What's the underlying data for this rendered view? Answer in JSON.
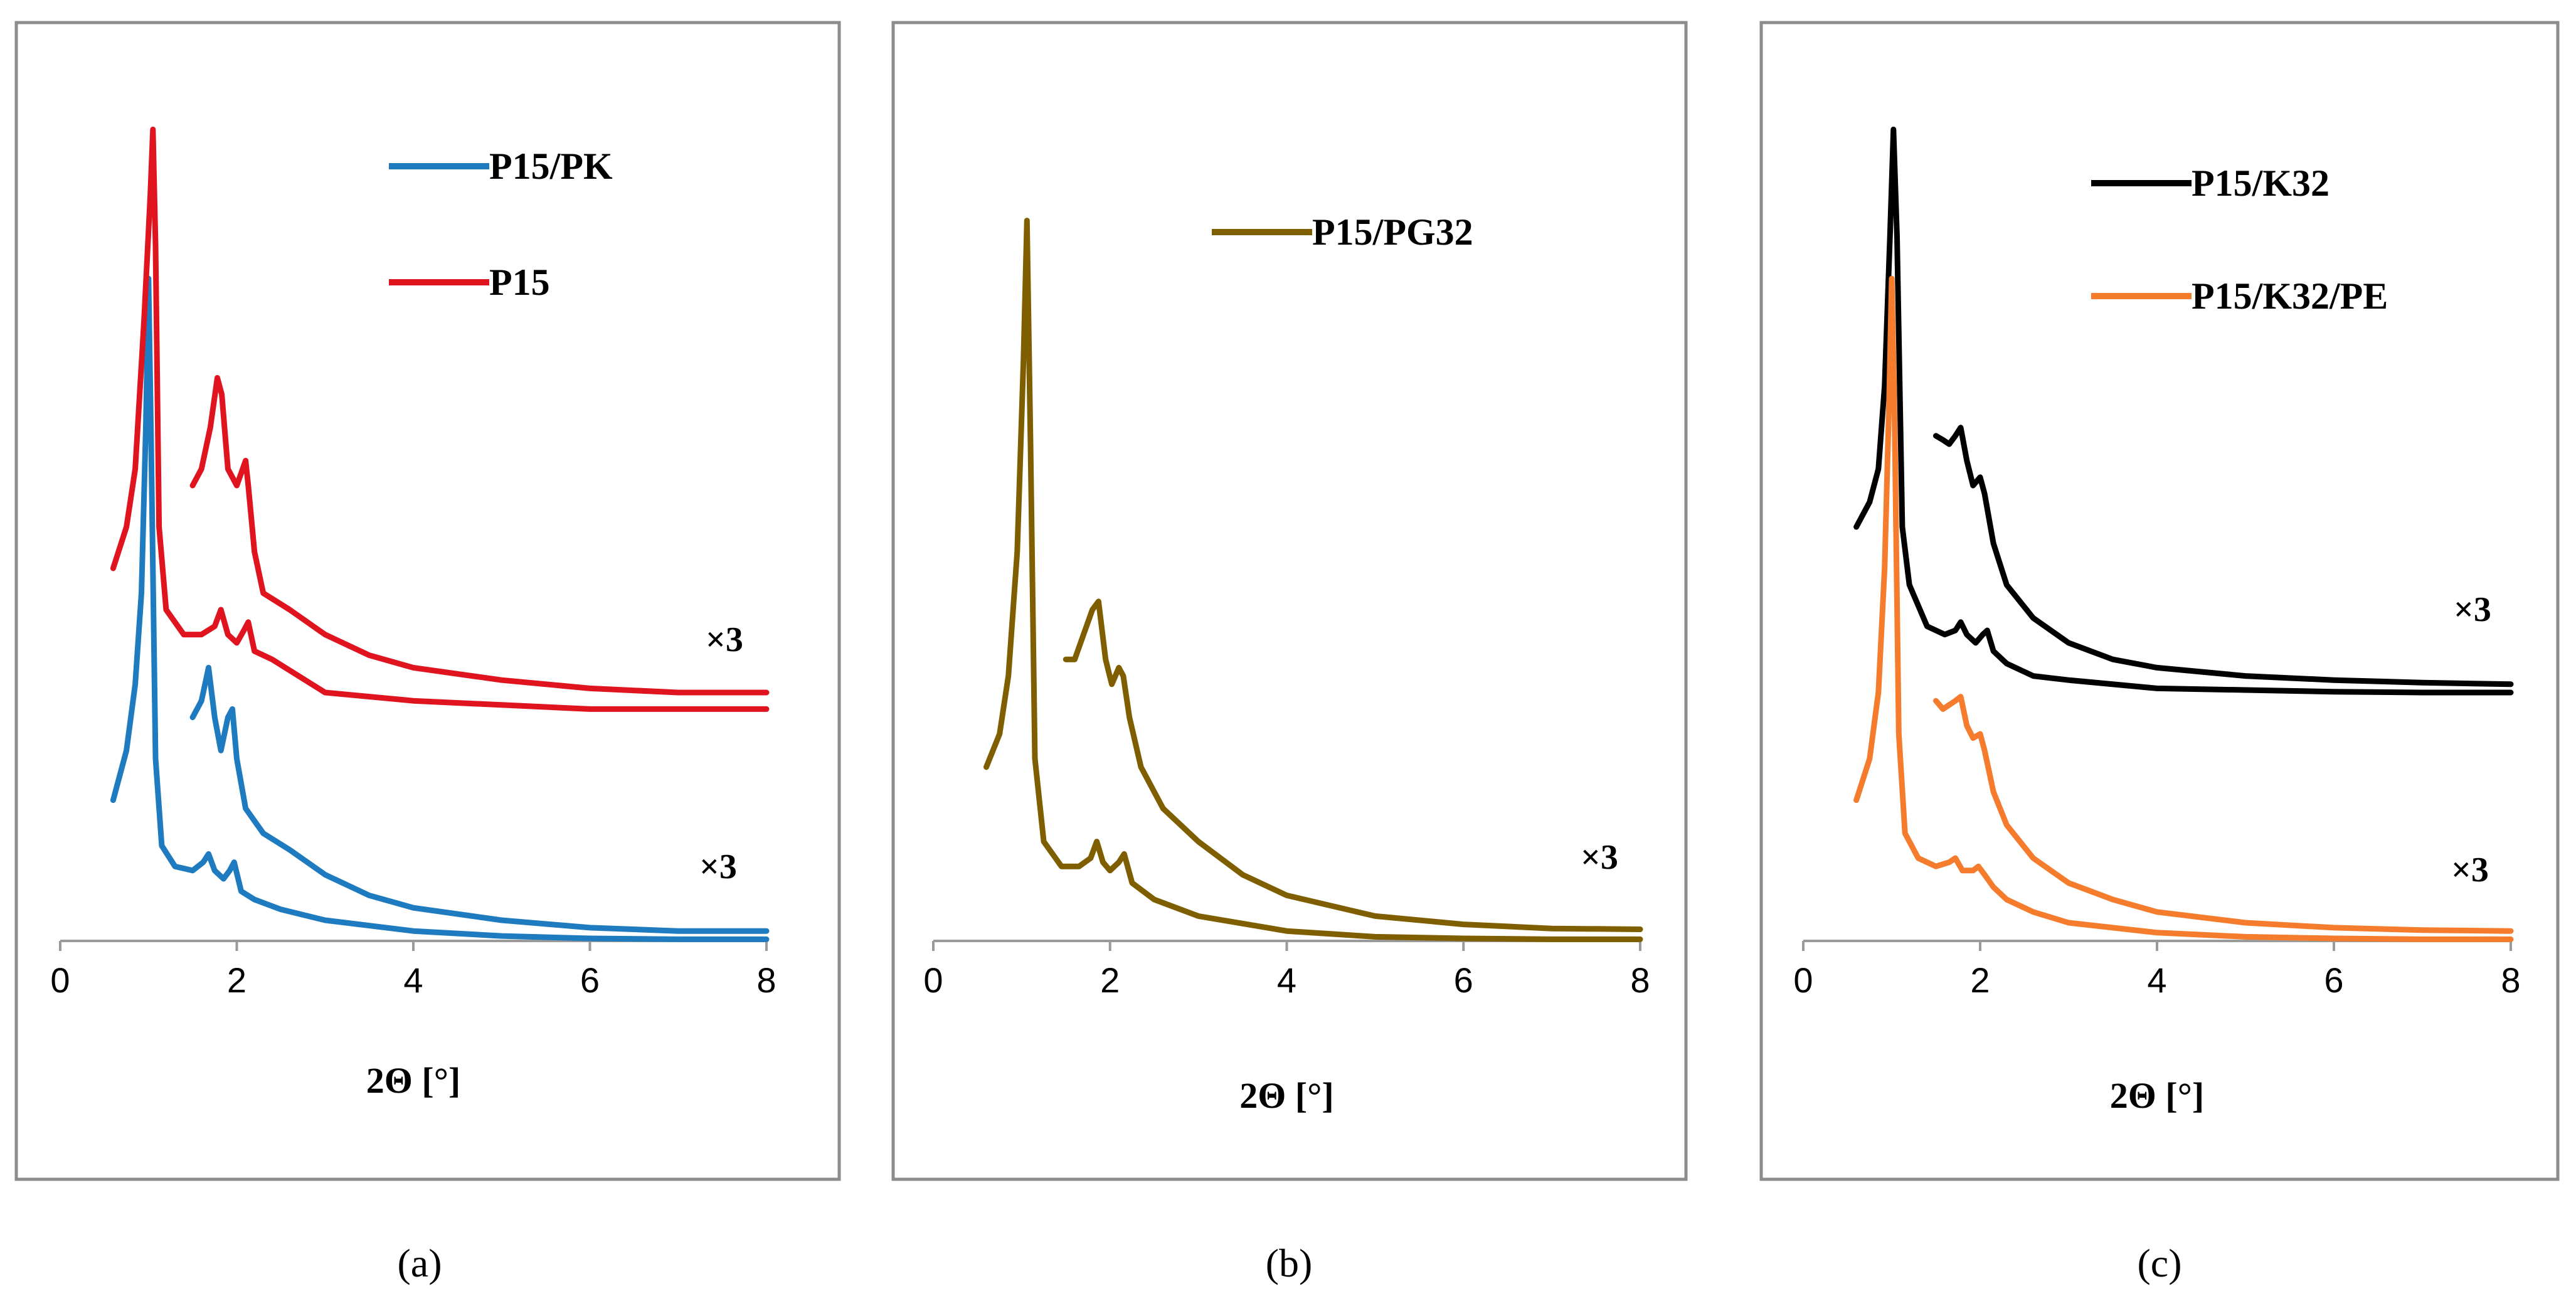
{
  "chart_data": [
    {
      "type": "line",
      "panel": "a",
      "caption": "(a)",
      "xlabel": "2Θ [°]",
      "ylabel": "",
      "xlim": [
        0,
        8
      ],
      "ylim": [
        0,
        100
      ],
      "xticks": [
        "0",
        "2",
        "4",
        "6",
        "8"
      ],
      "legend_position": "top-right",
      "legend": [
        {
          "name": "P15/PK",
          "color": "#1f7bbf"
        },
        {
          "name": "P15",
          "color": "#e0141e"
        }
      ],
      "annotations": [
        "×3",
        "×3"
      ],
      "series": [
        {
          "name": "P15/PK",
          "color": "#1f7bbf",
          "x": [
            0.6,
            0.75,
            0.85,
            0.92,
            0.97,
            1.0,
            1.03,
            1.08,
            1.15,
            1.3,
            1.5,
            1.62,
            1.68,
            1.75,
            1.85,
            1.92,
            1.97,
            2.05,
            2.2,
            2.5,
            3.0,
            4.0,
            5.0,
            6.0,
            7.0,
            8.0
          ],
          "y": [
            17,
            23,
            31,
            42,
            62,
            80,
            60,
            22,
            11.5,
            9,
            8.5,
            9.5,
            10.5,
            8.5,
            7.5,
            8.5,
            9.5,
            6,
            5,
            3.8,
            2.5,
            1.2,
            0.6,
            0.3,
            0.2,
            0.2
          ]
        },
        {
          "name": "P15/PK ×3",
          "color": "#1f7bbf",
          "x": [
            1.5,
            1.6,
            1.68,
            1.75,
            1.82,
            1.9,
            1.95,
            2.0,
            2.1,
            2.3,
            2.6,
            3.0,
            3.5,
            4.0,
            5.0,
            6.0,
            7.0,
            8.0
          ],
          "y": [
            27,
            29,
            33,
            27,
            23,
            27,
            28,
            22,
            16,
            13,
            11,
            8,
            5.5,
            4,
            2.5,
            1.6,
            1.2,
            1.2
          ]
        },
        {
          "name": "P15",
          "color": "#e0141e",
          "x": [
            0.6,
            0.75,
            0.85,
            0.95,
            1.02,
            1.05,
            1.08,
            1.12,
            1.2,
            1.4,
            1.6,
            1.75,
            1.82,
            1.9,
            2.0,
            2.08,
            2.13,
            2.2,
            2.4,
            3.0,
            4.0,
            5.0,
            6.0,
            8.0
          ],
          "y": [
            45,
            50,
            57,
            75,
            90,
            98,
            84,
            50,
            40,
            37,
            37,
            38,
            40,
            37,
            36,
            37.5,
            38.5,
            35,
            34,
            30,
            29,
            28.5,
            28,
            28
          ]
        },
        {
          "name": "P15 ×3",
          "color": "#e0141e",
          "x": [
            1.5,
            1.6,
            1.7,
            1.78,
            1.83,
            1.9,
            2.0,
            2.1,
            2.13,
            2.2,
            2.3,
            2.6,
            3.0,
            3.5,
            4.0,
            5.0,
            6.0,
            7.0,
            8.0
          ],
          "y": [
            55,
            57,
            62,
            68,
            66,
            57,
            55,
            58,
            55,
            47,
            42,
            40,
            37,
            34.5,
            33,
            31.5,
            30.5,
            30,
            30
          ]
        }
      ]
    },
    {
      "type": "line",
      "panel": "b",
      "caption": "(b)",
      "xlabel": "2Θ [°]",
      "ylabel": "",
      "xlim": [
        0,
        8
      ],
      "ylim": [
        0,
        100
      ],
      "xticks": [
        "0",
        "2",
        "4",
        "6",
        "8"
      ],
      "legend_position": "top-right",
      "legend": [
        {
          "name": "P15/PG32",
          "color": "#7f5e00"
        }
      ],
      "annotations": [
        "×3"
      ],
      "series": [
        {
          "name": "P15/PG32",
          "color": "#7f5e00",
          "x": [
            0.6,
            0.75,
            0.85,
            0.95,
            1.02,
            1.06,
            1.1,
            1.15,
            1.25,
            1.45,
            1.65,
            1.78,
            1.85,
            1.92,
            2.0,
            2.1,
            2.16,
            2.25,
            2.5,
            3.0,
            4.0,
            5.0,
            6.0,
            7.0,
            8.0
          ],
          "y": [
            21,
            25,
            32,
            47,
            70,
            87,
            60,
            22,
            12,
            9,
            9,
            10,
            12,
            9.5,
            8.5,
            9.5,
            10.5,
            7,
            5,
            3,
            1.2,
            0.5,
            0.3,
            0.2,
            0.2
          ]
        },
        {
          "name": "P15/PG32 ×3",
          "color": "#7f5e00",
          "x": [
            1.5,
            1.6,
            1.7,
            1.8,
            1.87,
            1.95,
            2.02,
            2.1,
            2.15,
            2.22,
            2.35,
            2.6,
            3.0,
            3.5,
            4.0,
            5.0,
            6.0,
            7.0,
            8.0
          ],
          "y": [
            34,
            34,
            37,
            40,
            41,
            34,
            31,
            33,
            32,
            27,
            21,
            16,
            12,
            8,
            5.5,
            3,
            2,
            1.5,
            1.4
          ]
        }
      ]
    },
    {
      "type": "line",
      "panel": "c",
      "caption": "(c)",
      "xlabel": "2Θ [°]",
      "ylabel": "",
      "xlim": [
        0,
        8
      ],
      "ylim": [
        0,
        100
      ],
      "xticks": [
        "0",
        "2",
        "4",
        "6",
        "8"
      ],
      "legend_position": "top-right",
      "legend": [
        {
          "name": "P15/K32",
          "color": "#000000"
        },
        {
          "name": "P15/K32/PE",
          "color": "#f47c2c"
        }
      ],
      "annotations": [
        "×3",
        "×3"
      ],
      "series": [
        {
          "name": "P15/K32",
          "color": "#000000",
          "x": [
            0.6,
            0.75,
            0.85,
            0.92,
            0.98,
            1.02,
            1.06,
            1.12,
            1.2,
            1.4,
            1.6,
            1.72,
            1.78,
            1.85,
            1.95,
            2.03,
            2.08,
            2.15,
            2.3,
            2.6,
            3.0,
            4.0,
            5.0,
            6.0,
            7.0,
            8.0
          ],
          "y": [
            50,
            53,
            57,
            67,
            85,
            98,
            85,
            50,
            43,
            38,
            37,
            37.5,
            38.5,
            37,
            36,
            37,
            37.5,
            35,
            33.5,
            32,
            31.5,
            30.5,
            30.3,
            30.1,
            30,
            30
          ]
        },
        {
          "name": "P15/K32 ×3",
          "color": "#000000",
          "x": [
            1.5,
            1.58,
            1.65,
            1.72,
            1.78,
            1.85,
            1.92,
            2.0,
            2.05,
            2.15,
            2.3,
            2.6,
            3.0,
            3.5,
            4.0,
            5.0,
            6.0,
            7.0,
            8.0
          ],
          "y": [
            61,
            60.5,
            60,
            61,
            62,
            58,
            55,
            56,
            54,
            48,
            43,
            39,
            36,
            34,
            33,
            32,
            31.5,
            31.2,
            31
          ]
        },
        {
          "name": "P15/K32/PE",
          "color": "#f47c2c",
          "x": [
            0.6,
            0.75,
            0.85,
            0.92,
            0.97,
            1.0,
            1.03,
            1.08,
            1.15,
            1.3,
            1.5,
            1.65,
            1.72,
            1.8,
            1.92,
            1.98,
            2.05,
            2.15,
            2.3,
            2.6,
            3.0,
            4.0,
            5.0,
            6.0,
            7.0,
            8.0
          ],
          "y": [
            17,
            22,
            30,
            45,
            65,
            80,
            65,
            25,
            13,
            10,
            9,
            9.5,
            10,
            8.5,
            8.5,
            9,
            8,
            6.5,
            5,
            3.5,
            2.2,
            1,
            0.5,
            0.3,
            0.2,
            0.2
          ]
        },
        {
          "name": "P15/K32/PE ×3",
          "color": "#f47c2c",
          "x": [
            1.5,
            1.58,
            1.65,
            1.72,
            1.78,
            1.85,
            1.92,
            2.0,
            2.05,
            2.15,
            2.3,
            2.6,
            3.0,
            3.5,
            4.0,
            5.0,
            6.0,
            7.0,
            8.0
          ],
          "y": [
            29,
            28,
            28.5,
            29,
            29.5,
            26,
            24.5,
            25,
            23,
            18,
            14,
            10,
            7,
            5,
            3.5,
            2.2,
            1.6,
            1.3,
            1.2
          ]
        }
      ]
    }
  ]
}
